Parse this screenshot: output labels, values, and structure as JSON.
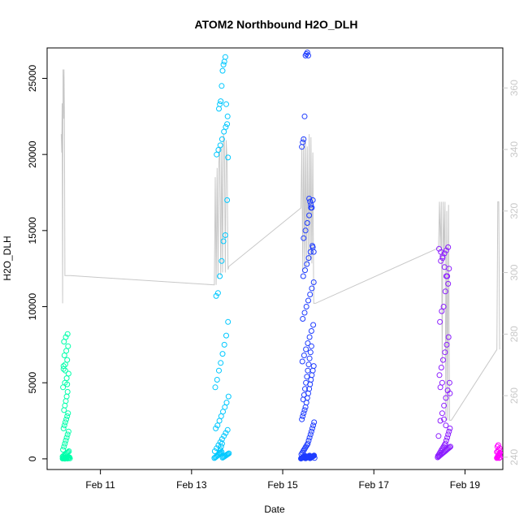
{
  "chart_data": {
    "type": "scatter",
    "title": "ATOM2 Northbound H2O_DLH",
    "xlabel": "Date",
    "ylabel": "H2O_DLH",
    "x_unit": "days since Feb 10 00:00",
    "xlim": [
      9.83,
      19.83
    ],
    "ylim": [
      -700,
      27000
    ],
    "y2lim": [
      236,
      373
    ],
    "x_ticks": [
      {
        "value": 11,
        "label": "Feb 11"
      },
      {
        "value": 13,
        "label": "Feb 13"
      },
      {
        "value": 15,
        "label": "Feb 15"
      },
      {
        "value": 17,
        "label": "Feb 17"
      },
      {
        "value": 19,
        "label": "Feb 19"
      }
    ],
    "y_ticks": [
      {
        "value": 0,
        "label": "0"
      },
      {
        "value": 5000,
        "label": "5000"
      },
      {
        "value": 10000,
        "label": "10000"
      },
      {
        "value": 15000,
        "label": "15000"
      },
      {
        "value": 20000,
        "label": "20000"
      },
      {
        "value": 25000,
        "label": "25000"
      }
    ],
    "y2_ticks": [
      {
        "value": 240,
        "label": "240"
      },
      {
        "value": 260,
        "label": "260"
      },
      {
        "value": 280,
        "label": "280"
      },
      {
        "value": 300,
        "label": "300"
      },
      {
        "value": 320,
        "label": "320"
      },
      {
        "value": 340,
        "label": "340"
      },
      {
        "value": 360,
        "label": "360"
      }
    ],
    "colors": {
      "flight1": "#00ffaa",
      "flight2": "#00c8ff",
      "flight3": "#1e3cff",
      "flight4": "#8c1eff",
      "flight5": "#ff00ff",
      "secondary_line": "#c8c8c8"
    },
    "series": [
      {
        "color": "#00ffaa",
        "x": [
          10.17,
          10.18,
          10.19,
          10.2,
          10.21,
          10.22,
          10.23,
          10.24,
          10.25,
          10.26,
          10.27,
          10.28,
          10.29,
          10.3,
          10.31,
          10.32,
          10.33,
          10.17,
          10.19,
          10.21,
          10.23,
          10.25,
          10.27,
          10.29,
          10.31,
          10.18,
          10.2,
          10.22,
          10.24,
          10.26,
          10.28,
          10.3,
          10.19,
          10.21,
          10.23,
          10.25,
          10.27,
          10.29,
          10.2,
          10.22,
          10.24,
          10.26,
          10.28,
          10.18,
          10.22,
          10.26,
          10.3,
          10.19,
          10.23,
          10.27,
          10.21,
          10.25,
          10.29,
          10.2,
          10.24,
          10.28,
          10.19,
          10.23,
          10.27
        ],
        "y": [
          20,
          40,
          60,
          80,
          100,
          10,
          30,
          50,
          70,
          90,
          110,
          20,
          40,
          60,
          80,
          100,
          30,
          150,
          200,
          250,
          300,
          350,
          400,
          450,
          500,
          600,
          800,
          1000,
          1200,
          1400,
          1600,
          1800,
          2000,
          2200,
          2400,
          2600,
          2800,
          3000,
          3200,
          3500,
          3800,
          4100,
          4400,
          4700,
          5000,
          5300,
          5600,
          5900,
          6200,
          6500,
          6800,
          7100,
          7400,
          7700,
          8000,
          8200,
          6100,
          5800,
          4900
        ]
      },
      {
        "color": "#00c8ff",
        "x": [
          13.5,
          13.52,
          13.54,
          13.56,
          13.58,
          13.6,
          13.62,
          13.64,
          13.66,
          13.68,
          13.7,
          13.72,
          13.74,
          13.76,
          13.78,
          13.8,
          13.82,
          13.51,
          13.55,
          13.59,
          13.63,
          13.67,
          13.71,
          13.75,
          13.79,
          13.53,
          13.57,
          13.61,
          13.65,
          13.69,
          13.73,
          13.77,
          13.81,
          13.52,
          13.56,
          13.6,
          13.64,
          13.68,
          13.72,
          13.76,
          13.8,
          13.54,
          13.58,
          13.62,
          13.66,
          13.7,
          13.74,
          13.78,
          13.55,
          13.59,
          13.63,
          13.67,
          13.71,
          13.75,
          13.79,
          13.6,
          13.62,
          13.64,
          13.66,
          13.68,
          13.7,
          13.72,
          13.74,
          13.76,
          13.78,
          13.8,
          13.61,
          13.63,
          13.65,
          13.67
        ],
        "y": [
          50,
          100,
          150,
          200,
          250,
          300,
          350,
          400,
          450,
          80,
          120,
          160,
          200,
          240,
          280,
          320,
          360,
          500,
          700,
          900,
          1100,
          1300,
          1500,
          1700,
          1900,
          2000,
          2200,
          2500,
          2800,
          3100,
          3400,
          3700,
          4100,
          4700,
          5200,
          5800,
          6300,
          6900,
          7500,
          8100,
          9000,
          10700,
          10900,
          12000,
          13000,
          14300,
          14700,
          17000,
          20000,
          20300,
          20600,
          21000,
          21500,
          21800,
          22500,
          23000,
          23300,
          23500,
          24500,
          25500,
          25900,
          26100,
          26400,
          23300,
          22000,
          19800,
          400,
          600,
          800,
          1000
        ]
      },
      {
        "color": "#1e3cff",
        "x": [
          15.4,
          15.41,
          15.42,
          15.43,
          15.44,
          15.45,
          15.46,
          15.47,
          15.48,
          15.49,
          15.5,
          15.51,
          15.52,
          15.53,
          15.54,
          15.55,
          15.56,
          15.57,
          15.58,
          15.59,
          15.6,
          15.61,
          15.62,
          15.63,
          15.64,
          15.65,
          15.66,
          15.67,
          15.68,
          15.69,
          15.7,
          15.41,
          15.43,
          15.45,
          15.47,
          15.49,
          15.51,
          15.53,
          15.55,
          15.57,
          15.59,
          15.61,
          15.63,
          15.65,
          15.67,
          15.69,
          15.42,
          15.44,
          15.46,
          15.48,
          15.5,
          15.52,
          15.54,
          15.56,
          15.58,
          15.6,
          15.62,
          15.64,
          15.66,
          15.68,
          15.43,
          15.47,
          15.51,
          15.55,
          15.59,
          15.63,
          15.67,
          15.44,
          15.48,
          15.52,
          15.56,
          15.6,
          15.64,
          15.68,
          15.45,
          15.49,
          15.53,
          15.57,
          15.61,
          15.65,
          15.46,
          15.5,
          15.54,
          15.58,
          15.62,
          15.66,
          15.42,
          15.44,
          15.46,
          15.48,
          15.5,
          15.52,
          15.54,
          15.56,
          15.58,
          15.6,
          15.62,
          15.64,
          15.66,
          15.68,
          15.45,
          15.47,
          15.49,
          15.51,
          15.53,
          15.55,
          15.57,
          15.59,
          15.61,
          15.63
        ],
        "y": [
          20,
          40,
          60,
          80,
          100,
          120,
          140,
          160,
          180,
          200,
          30,
          50,
          70,
          90,
          110,
          130,
          150,
          170,
          190,
          210,
          40,
          60,
          80,
          100,
          120,
          140,
          160,
          180,
          200,
          220,
          60,
          300,
          400,
          500,
          600,
          700,
          800,
          900,
          1000,
          1200,
          1400,
          1600,
          1800,
          2000,
          2200,
          2400,
          2600,
          2800,
          3000,
          3200,
          3400,
          3700,
          4000,
          4300,
          4600,
          4900,
          5200,
          5500,
          5800,
          6100,
          6400,
          6800,
          7200,
          7600,
          8000,
          8400,
          8800,
          9200,
          9600,
          10000,
          10400,
          10800,
          11200,
          11600,
          12000,
          12400,
          12800,
          13200,
          13600,
          14000,
          14500,
          15000,
          15500,
          16000,
          16500,
          17000,
          20500,
          20800,
          21000,
          22500,
          26500,
          26600,
          26700,
          26500,
          17100,
          16900,
          16700,
          16500,
          13900,
          13600,
          3900,
          4200,
          4600,
          5000,
          5400,
          5800,
          6200,
          6600,
          7000,
          7400
        ]
      },
      {
        "color": "#8c1eff",
        "x": [
          18.4,
          18.42,
          18.44,
          18.46,
          18.48,
          18.5,
          18.52,
          18.54,
          18.56,
          18.58,
          18.6,
          18.62,
          18.64,
          18.66,
          18.68,
          18.41,
          18.43,
          18.45,
          18.47,
          18.49,
          18.51,
          18.53,
          18.55,
          18.57,
          18.59,
          18.61,
          18.63,
          18.65,
          18.67,
          18.42,
          18.46,
          18.5,
          18.54,
          18.58,
          18.62,
          18.66,
          18.44,
          18.48,
          18.52,
          18.56,
          18.6,
          18.64,
          18.45,
          18.49,
          18.53,
          18.57,
          18.61,
          18.65,
          18.47,
          18.51,
          18.55,
          18.59,
          18.63,
          18.43,
          18.47,
          18.51,
          18.55,
          18.59,
          18.63,
          18.67,
          18.46,
          18.5,
          18.54,
          18.58
        ],
        "y": [
          100,
          150,
          200,
          250,
          300,
          350,
          400,
          450,
          500,
          550,
          600,
          650,
          700,
          750,
          800,
          200,
          300,
          400,
          500,
          600,
          700,
          800,
          900,
          1000,
          1200,
          1400,
          1600,
          1800,
          2000,
          1500,
          2500,
          3000,
          3500,
          4000,
          4500,
          5000,
          5500,
          6000,
          6500,
          7000,
          7500,
          8000,
          9000,
          9700,
          10000,
          11000,
          12000,
          12500,
          13000,
          13300,
          13500,
          13700,
          13900,
          13800,
          13600,
          13200,
          12600,
          12000,
          11500,
          4300,
          4700,
          5000,
          2600,
          2200
        ]
      },
      {
        "color": "#ff00ff",
        "x": [
          19.7,
          19.71,
          19.72,
          19.73,
          19.74,
          19.75,
          19.76,
          19.77,
          19.7,
          19.72,
          19.74,
          19.76,
          19.71,
          19.73,
          19.75,
          19.77,
          19.72,
          19.74
        ],
        "y": [
          50,
          100,
          150,
          200,
          250,
          300,
          350,
          400,
          450,
          500,
          600,
          700,
          800,
          900,
          50,
          100,
          150,
          200
        ]
      }
    ],
    "secondary_line": {
      "color": "#c8c8c8",
      "x": [
        10.14,
        10.15,
        10.16,
        10.17,
        10.18,
        10.19,
        10.2,
        10.21,
        10.22,
        10.23,
        10.24,
        10.25,
        10.26,
        10.27,
        10.28,
        10.29,
        10.3,
        10.31,
        10.32,
        10.33,
        10.34,
        13.5,
        13.52,
        13.54,
        13.56,
        13.58,
        13.6,
        13.62,
        13.64,
        13.66,
        13.68,
        13.7,
        13.72,
        13.74,
        13.76,
        13.78,
        13.8,
        13.82,
        15.4,
        15.42,
        15.44,
        15.46,
        15.48,
        15.5,
        15.52,
        15.54,
        15.56,
        15.58,
        15.6,
        15.62,
        15.64,
        15.66,
        15.68,
        15.7,
        15.72,
        18.42,
        18.44,
        18.46,
        18.48,
        18.5,
        18.52,
        18.54,
        18.56,
        18.58,
        18.6,
        18.62,
        18.64,
        18.66,
        18.68,
        18.7,
        19.7,
        19.72,
        19.74,
        19.76
      ],
      "y": [
        345,
        339,
        355,
        290,
        366,
        350,
        366,
        352,
        299,
        299,
        299,
        299,
        299,
        299,
        299,
        299,
        299,
        299,
        299,
        299,
        299,
        296,
        331,
        296,
        334,
        298,
        336,
        341,
        299,
        341,
        300,
        345,
        342,
        300,
        343,
        336,
        301,
        302,
        321,
        341,
        300,
        344,
        301,
        343,
        302,
        341,
        303,
        345,
        304,
        344,
        303,
        339,
        290,
        290,
        290,
        308,
        323,
        308,
        323,
        270,
        323,
        306,
        323,
        252,
        320,
        252,
        322,
        252,
        252,
        252,
        275,
        323,
        323,
        275
      ]
    }
  }
}
